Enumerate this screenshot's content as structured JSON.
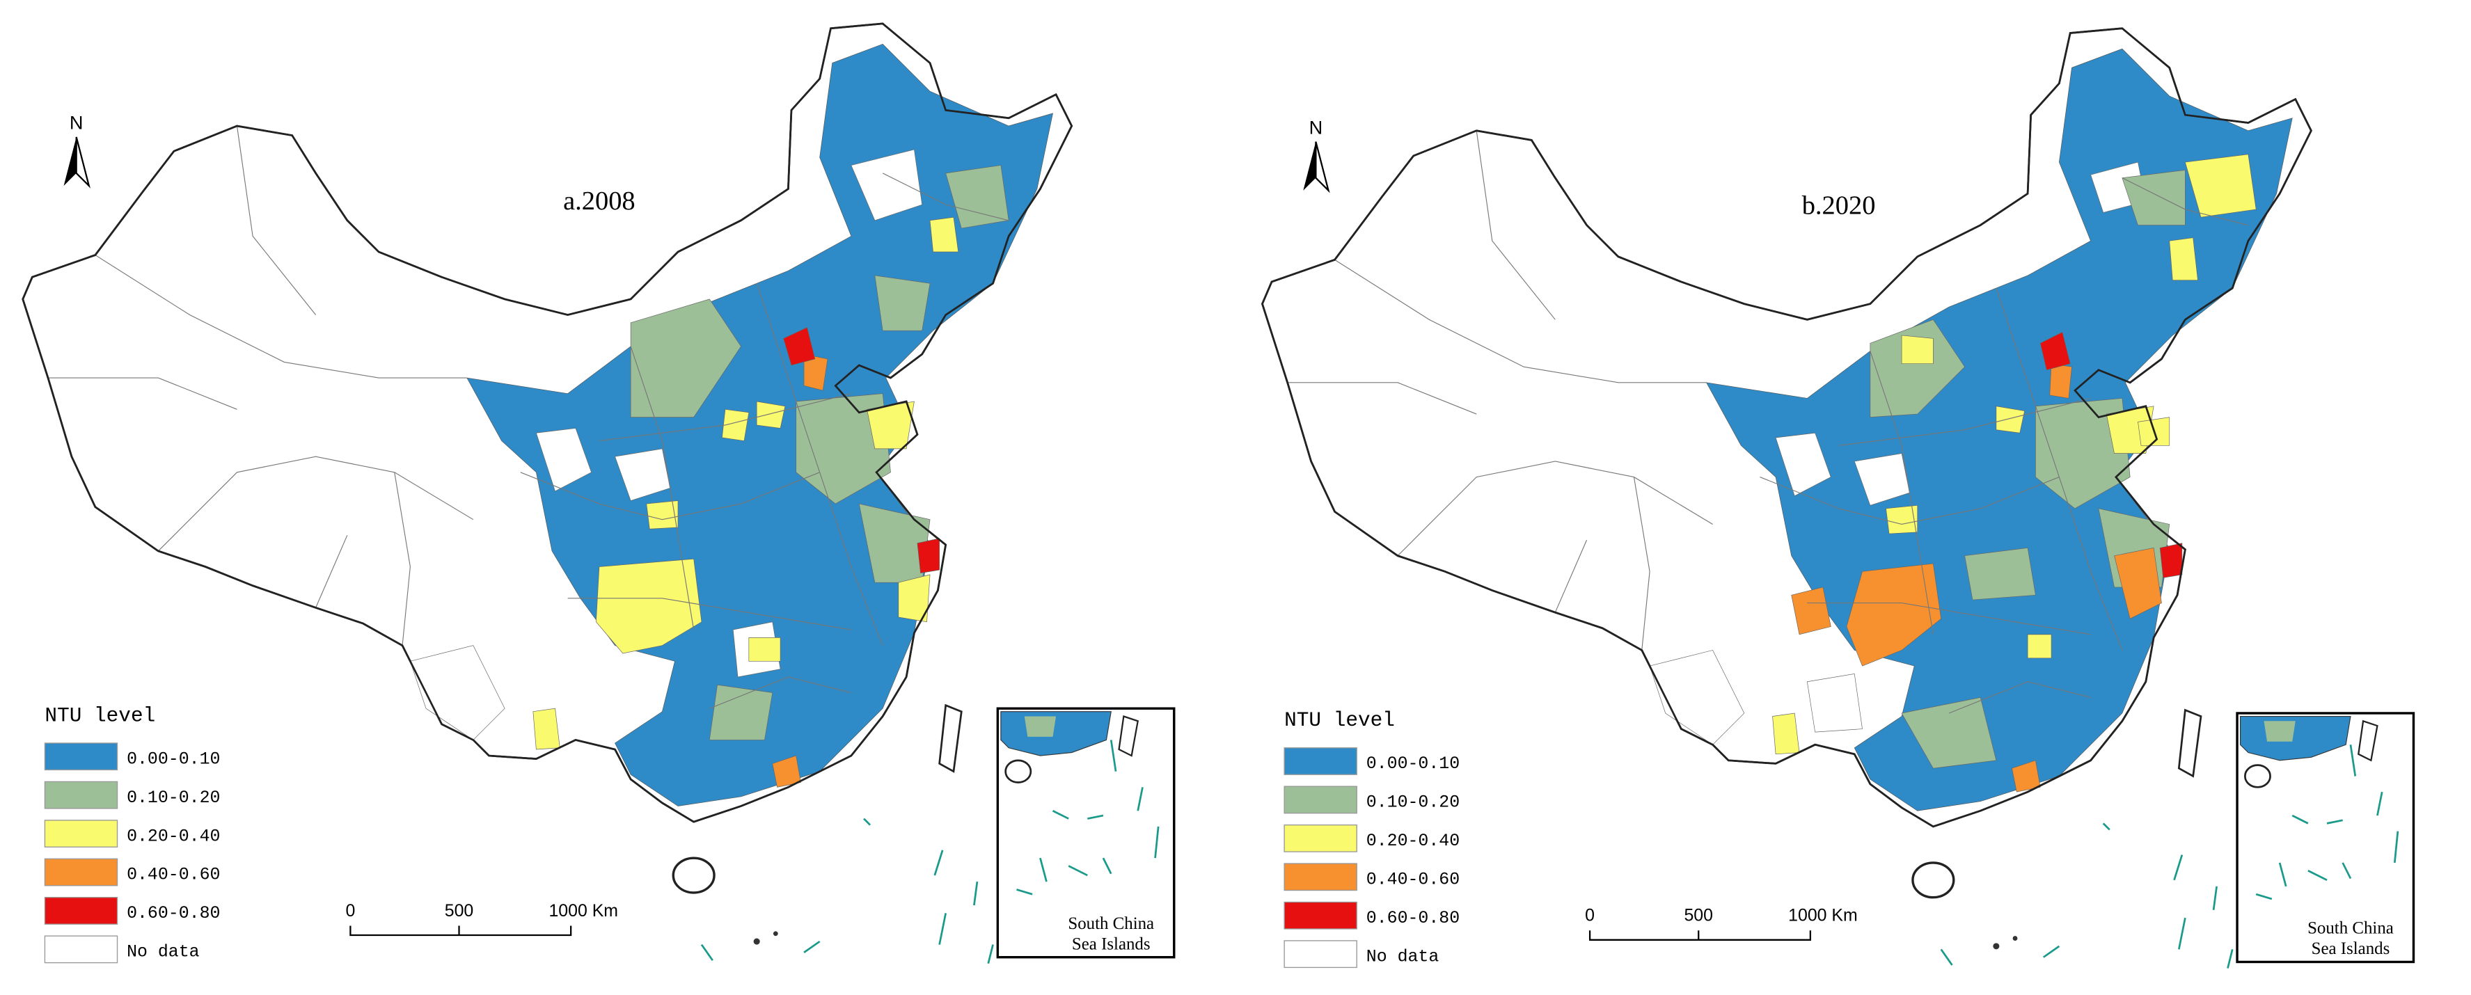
{
  "panels": [
    {
      "title": "a.2008",
      "north": "N",
      "legend": {
        "title": "NTU level",
        "items": [
          {
            "label": "0.00-0.10",
            "color": "#2e8bc7"
          },
          {
            "label": "0.10-0.20",
            "color": "#9dbf98"
          },
          {
            "label": "0.20-0.40",
            "color": "#fafa6e"
          },
          {
            "label": "0.40-0.60",
            "color": "#f7912f"
          },
          {
            "label": "0.60-0.80",
            "color": "#e61010"
          },
          {
            "label": "No data",
            "color": "#ffffff"
          }
        ]
      },
      "scale_bar": [
        "0",
        "500",
        "1000 Km"
      ],
      "inset_label": [
        "South China",
        "Sea Islands"
      ]
    },
    {
      "title": "b.2020",
      "north": "N",
      "legend": {
        "title": "NTU level",
        "items": [
          {
            "label": "0.00-0.10",
            "color": "#2e8bc7"
          },
          {
            "label": "0.10-0.20",
            "color": "#9dbf98"
          },
          {
            "label": "0.20-0.40",
            "color": "#fafa6e"
          },
          {
            "label": "0.40-0.60",
            "color": "#f7912f"
          },
          {
            "label": "0.60-0.80",
            "color": "#e61010"
          },
          {
            "label": "No data",
            "color": "#ffffff"
          }
        ]
      },
      "scale_bar": [
        "0",
        "500",
        "1000 Km"
      ],
      "inset_label": [
        "South China",
        "Sea Islands"
      ]
    }
  ]
}
